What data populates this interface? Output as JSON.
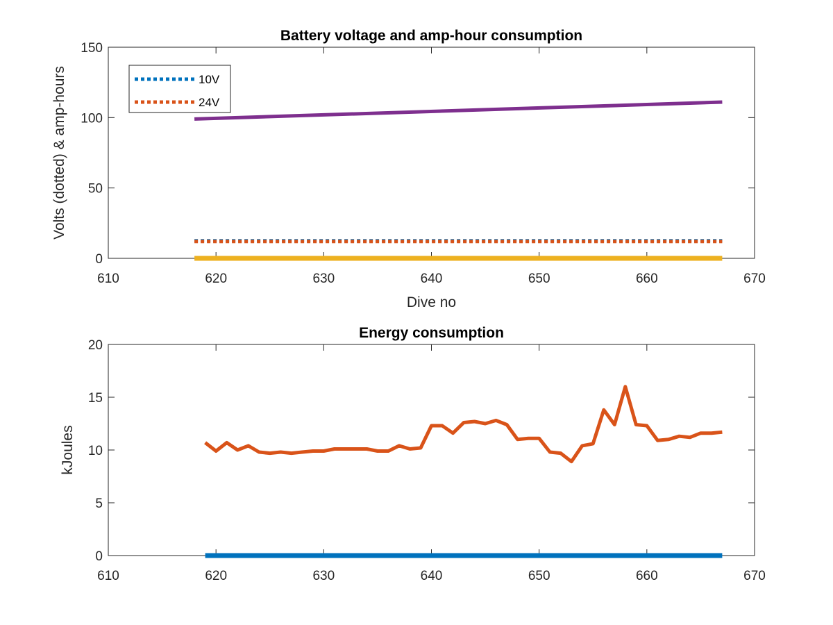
{
  "chart_data": [
    {
      "type": "line",
      "title": "Battery voltage and amp-hour consumption",
      "xlabel": "Dive no",
      "ylabel": "Volts (dotted) & amp-hours",
      "xlim": [
        610,
        670
      ],
      "ylim": [
        0,
        150
      ],
      "xticks": [
        "610",
        "620",
        "630",
        "640",
        "650",
        "660",
        "670"
      ],
      "yticks": [
        "0",
        "50",
        "100",
        "150"
      ],
      "grid": false,
      "legend_position": "top-left",
      "series": [
        {
          "name": "10V",
          "style": "dotted",
          "color": "#0072BD",
          "x": [
            618,
            667
          ],
          "y": [
            12.5,
            12.5
          ]
        },
        {
          "name": "24V",
          "style": "dotted",
          "color": "#D95319",
          "x": [
            618,
            667
          ],
          "y": [
            12.0,
            12.0
          ]
        },
        {
          "style": "solid",
          "color": "#7E2F8E",
          "x": [
            618,
            667
          ],
          "y": [
            99,
            111
          ]
        },
        {
          "style": "solid",
          "color": "#EDB120",
          "x": [
            618,
            667
          ],
          "y": [
            0,
            0
          ]
        }
      ]
    },
    {
      "type": "line",
      "title": "Energy consumption",
      "xlabel": "",
      "ylabel": "kJoules",
      "xlim": [
        610,
        670
      ],
      "ylim": [
        0,
        20
      ],
      "xticks": [
        "610",
        "620",
        "630",
        "640",
        "650",
        "660",
        "670"
      ],
      "yticks": [
        "0",
        "5",
        "10",
        "15",
        "20"
      ],
      "grid": false,
      "series": [
        {
          "style": "solid",
          "color": "#0072BD",
          "x": [
            619,
            667
          ],
          "y": [
            0,
            0
          ]
        },
        {
          "style": "solid",
          "color": "#D95319",
          "x": [
            619,
            620,
            621,
            622,
            623,
            624,
            625,
            626,
            627,
            628,
            629,
            630,
            631,
            632,
            633,
            634,
            635,
            636,
            637,
            638,
            639,
            640,
            641,
            642,
            643,
            644,
            645,
            646,
            647,
            648,
            649,
            650,
            651,
            652,
            653,
            654,
            655,
            656,
            657,
            658,
            659,
            660,
            661,
            662,
            663,
            664,
            665,
            666,
            667
          ],
          "y": [
            10.7,
            9.9,
            10.7,
            10.0,
            10.4,
            9.8,
            9.7,
            9.8,
            9.7,
            9.8,
            9.9,
            9.9,
            10.1,
            10.1,
            10.1,
            10.1,
            9.9,
            9.9,
            10.4,
            10.1,
            10.2,
            12.3,
            12.3,
            11.6,
            12.6,
            12.7,
            12.5,
            12.8,
            12.4,
            11.0,
            11.1,
            11.1,
            9.8,
            9.7,
            8.9,
            10.4,
            10.6,
            13.8,
            12.4,
            16.0,
            12.4,
            12.3,
            10.9,
            11.0,
            11.3,
            11.2,
            11.6,
            11.6,
            11.7
          ]
        }
      ]
    }
  ]
}
